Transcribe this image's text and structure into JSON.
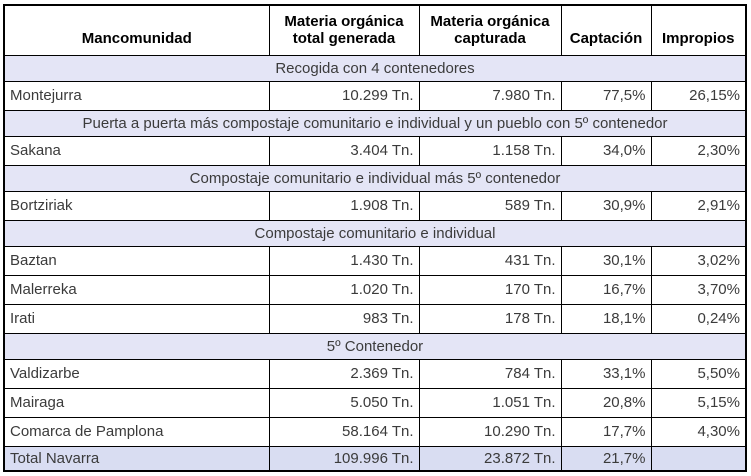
{
  "chart_data": {
    "type": "table",
    "columns": [
      "Mancomunidad",
      "Materia orgánica total generada",
      "Materia orgánica capturada",
      "Captación",
      "Impropios"
    ],
    "units": {
      "mass": "Tn.",
      "percent": "%"
    },
    "sections": [
      {
        "label": "Recogida con 4 contenedores",
        "rows": [
          [
            "Montejurra",
            "10.299 Tn.",
            "7.980 Tn.",
            "77,5%",
            "26,15%"
          ]
        ]
      },
      {
        "label": "Puerta a puerta más compostaje comunitario e individual y un pueblo con 5º contenedor",
        "rows": [
          [
            "Sakana",
            "3.404 Tn.",
            "1.158 Tn.",
            "34,0%",
            "2,30%"
          ]
        ]
      },
      {
        "label": "Compostaje comunitario e individual más 5º contenedor",
        "rows": [
          [
            "Bortziriak",
            "1.908 Tn.",
            "589 Tn.",
            "30,9%",
            "2,91%"
          ]
        ]
      },
      {
        "label": "Compostaje comunitario e individual",
        "rows": [
          [
            "Baztan",
            "1.430 Tn.",
            "431 Tn.",
            "30,1%",
            "3,02%"
          ],
          [
            "Malerreka",
            "1.020 Tn.",
            "170 Tn.",
            "16,7%",
            "3,70%"
          ],
          [
            "Irati",
            "983 Tn.",
            "178 Tn.",
            "18,1%",
            "0,24%"
          ]
        ]
      },
      {
        "label": "5º Contenedor",
        "rows": [
          [
            "Valdizarbe",
            "2.369 Tn.",
            "784 Tn.",
            "33,1%",
            "5,50%"
          ],
          [
            "Mairaga",
            "5.050 Tn.",
            "1.051 Tn.",
            "20,8%",
            "5,15%"
          ],
          [
            "Comarca de Pamplona",
            "58.164 Tn.",
            "10.290 Tn.",
            "17,7%",
            "4,30%"
          ]
        ]
      }
    ],
    "total_row": [
      "Total Navarra",
      "109.996 Tn.",
      "23.872 Tn.",
      "21,7%",
      ""
    ]
  },
  "header_display": {
    "col1": "Mancomunidad",
    "col2": "Materia orgánica\ntotal generada",
    "col3": "Materia orgánica\ncapturada",
    "col4": "Captación",
    "col5": "Impropios"
  },
  "colors": {
    "section_row_bg": "#e4e5f6",
    "total_row_bg": "#d9ddf2",
    "grid_border": "#000000",
    "body_text": "#3b3b3b",
    "header_text": "#000000"
  }
}
